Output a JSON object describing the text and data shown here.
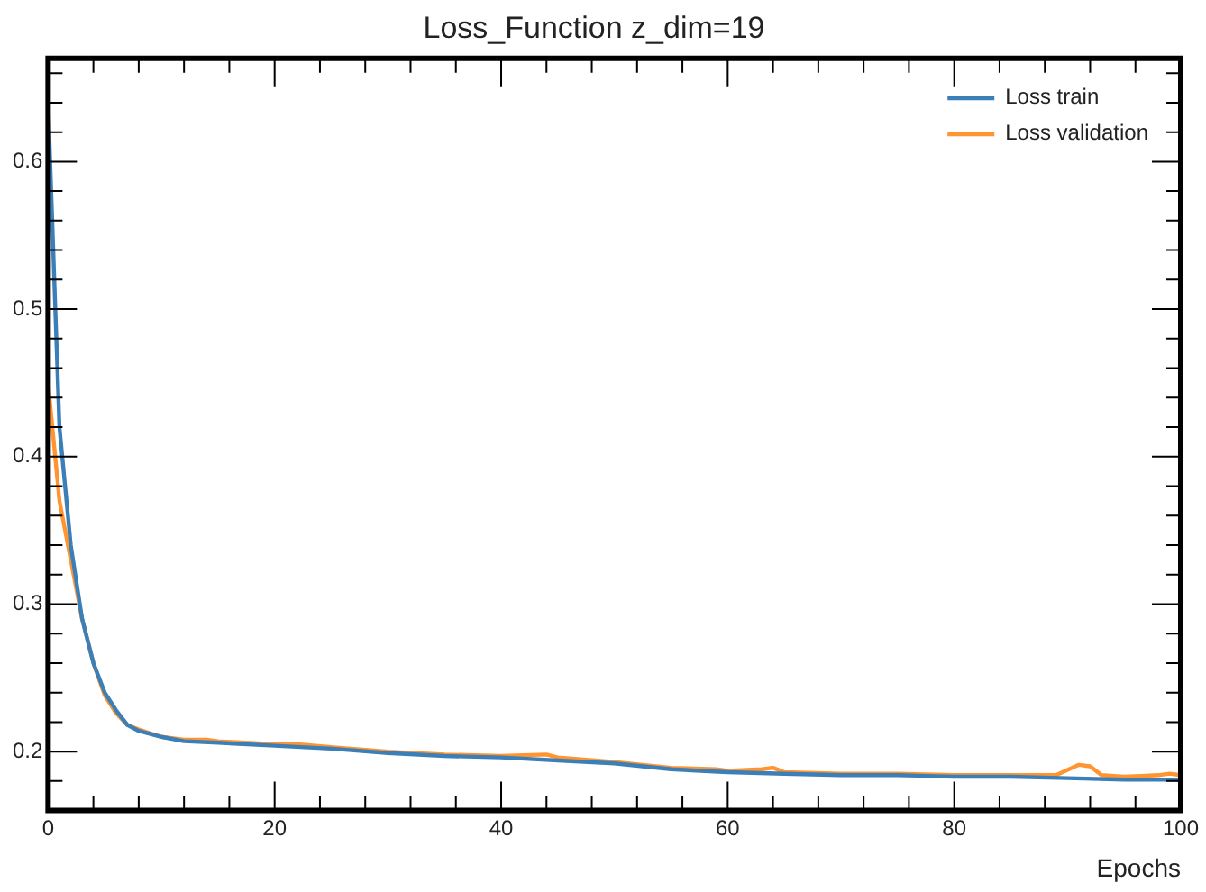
{
  "chart_data": {
    "type": "line",
    "title": "Loss_Function z_dim=19",
    "xlabel": "Epochs",
    "xlim": [
      0,
      100
    ],
    "xticks": [
      0,
      20,
      40,
      60,
      80,
      100
    ],
    "ylim": [
      0.16,
      0.67
    ],
    "yticks": [
      0.2,
      0.3,
      0.4,
      0.5,
      0.6
    ],
    "grid": false,
    "legend": "top right",
    "marker": "none",
    "line_style": "solid",
    "series": [
      {
        "name": "Loss train",
        "color": "#3a7fb8",
        "x": [
          0,
          1,
          2,
          3,
          4,
          5,
          6,
          7,
          8,
          10,
          12,
          15,
          20,
          25,
          30,
          35,
          40,
          45,
          50,
          55,
          60,
          65,
          70,
          75,
          80,
          85,
          90,
          95,
          100
        ],
        "values": [
          0.64,
          0.42,
          0.34,
          0.29,
          0.26,
          0.24,
          0.228,
          0.218,
          0.214,
          0.21,
          0.207,
          0.206,
          0.204,
          0.202,
          0.199,
          0.197,
          0.196,
          0.194,
          0.192,
          0.188,
          0.186,
          0.185,
          0.184,
          0.184,
          0.183,
          0.183,
          0.182,
          0.181,
          0.181
        ]
      },
      {
        "name": "Loss validation",
        "color": "#ff9430",
        "x": [
          0,
          1,
          2,
          3,
          4,
          5,
          6,
          7,
          8,
          10,
          12,
          14,
          15,
          20,
          22,
          25,
          30,
          35,
          40,
          44,
          45,
          50,
          55,
          59,
          60,
          63,
          64,
          65,
          70,
          75,
          80,
          85,
          89,
          91,
          92,
          93,
          95,
          98,
          99,
          100
        ],
        "values": [
          0.45,
          0.37,
          0.33,
          0.29,
          0.26,
          0.238,
          0.226,
          0.218,
          0.215,
          0.21,
          0.208,
          0.208,
          0.207,
          0.205,
          0.205,
          0.203,
          0.2,
          0.198,
          0.197,
          0.198,
          0.196,
          0.193,
          0.189,
          0.188,
          0.187,
          0.188,
          0.189,
          0.186,
          0.185,
          0.185,
          0.184,
          0.184,
          0.184,
          0.191,
          0.19,
          0.184,
          0.183,
          0.184,
          0.185,
          0.184
        ]
      }
    ]
  }
}
